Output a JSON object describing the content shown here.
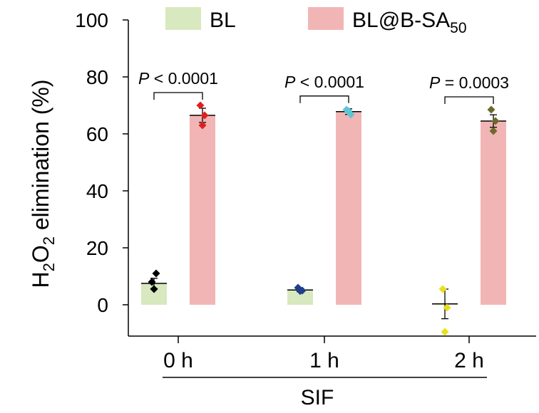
{
  "chart_data": {
    "type": "bar",
    "ylabel": {
      "pre": "H",
      "sub1": "2",
      "mid": "O",
      "sub2": "2",
      "post": " elimination (%)"
    },
    "xgroup_label": "SIF",
    "categories": [
      "0 h",
      "1 h",
      "2 h"
    ],
    "ylim": [
      -11,
      100
    ],
    "yticks": [
      0,
      20,
      40,
      60,
      80,
      100
    ],
    "grid": false,
    "legend_position": "top",
    "series": [
      {
        "name": "BL",
        "color": "#d8e8bf",
        "values": [
          7.5,
          5.2,
          0.3
        ],
        "errors": [
          1.8,
          0.6,
          5.2
        ],
        "points": [
          [
            8.0,
            11.0,
            5.5
          ],
          [
            6.0,
            5.0,
            4.8
          ],
          [
            5.5,
            -1.0,
            -9.5
          ]
        ],
        "point_colors": [
          "#000000",
          "#1f3e8c",
          "#e8e01a"
        ]
      },
      {
        "name": "BL@B-SA",
        "name_sub": "50",
        "color": "#f2b5b5",
        "values": [
          66.5,
          67.8,
          64.5
        ],
        "errors": [
          2.5,
          1.0,
          2.2
        ],
        "points": [
          [
            70.0,
            66.5,
            63.0
          ],
          [
            68.5,
            66.8,
            68.0
          ],
          [
            68.5,
            64.5,
            61.0
          ]
        ],
        "point_colors": [
          "#e02020",
          "#5bc6d6",
          "#6b6b2a"
        ]
      }
    ],
    "annotations": [
      {
        "prefix": "P",
        "text": " < 0.0001"
      },
      {
        "prefix": "P",
        "text": " < 0.0001"
      },
      {
        "prefix": "P",
        "text": " = 0.0003"
      }
    ]
  }
}
